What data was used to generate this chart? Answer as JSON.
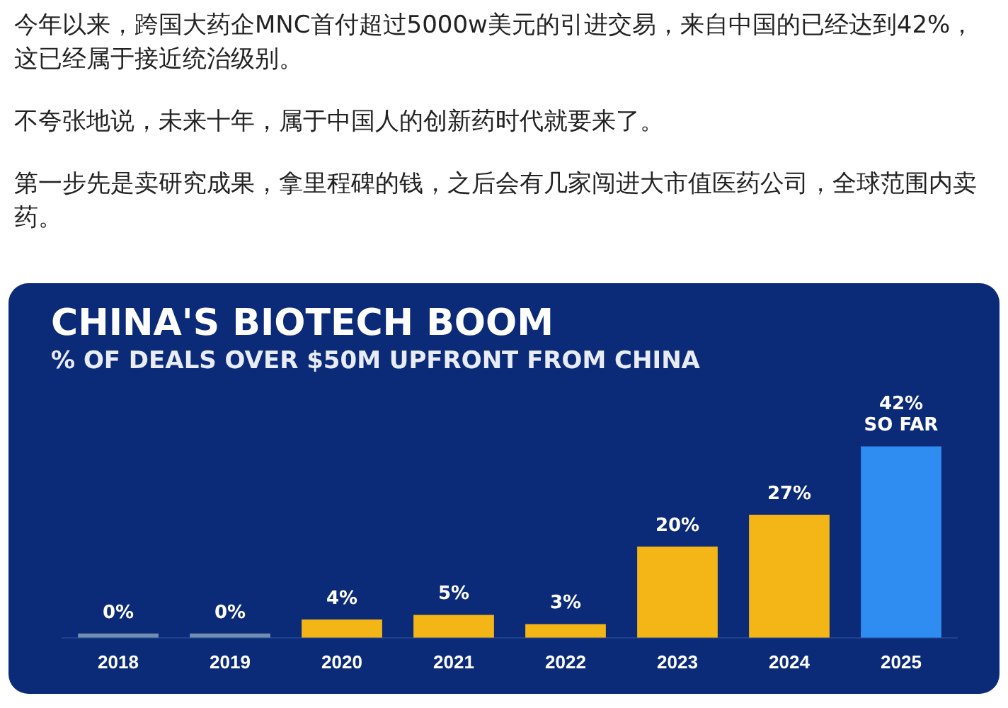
{
  "chart_data": {
    "type": "bar",
    "title": "CHINA'S BIOTECH BOOM",
    "subtitle": "% OF DEALS OVER $50M UPFRONT FROM CHINA",
    "annotations": [
      "今年以来，跨国大药企MNC首付超过5000w美元的引进交易，来自中国的已经达到42%，这已经属于接近统治级别。",
      "不夸张地说，未来十年，属于中国人的创新药时代就要来了。",
      "第一步先是卖研究成果，拿里程碑的钱，之后会有几家闯进大市值医药公司，全球范围内卖药。"
    ],
    "categories": [
      "2018",
      "2019",
      "2020",
      "2021",
      "2022",
      "2023",
      "2024",
      "2025"
    ],
    "values": [
      0,
      0,
      4,
      5,
      3,
      20,
      27,
      42
    ],
    "colors": [
      "#6f8fb0",
      "#6f8fb0",
      "#f4b516",
      "#f4b516",
      "#f4b516",
      "#f4b516",
      "#f4b516",
      "#2f8df2"
    ],
    "value_labels": [
      "0%",
      "0%",
      "4%",
      "5%",
      "3%",
      "20%",
      "27%",
      "42%\nSO FAR"
    ],
    "relative": false,
    "grid": false,
    "legend": false
  }
}
